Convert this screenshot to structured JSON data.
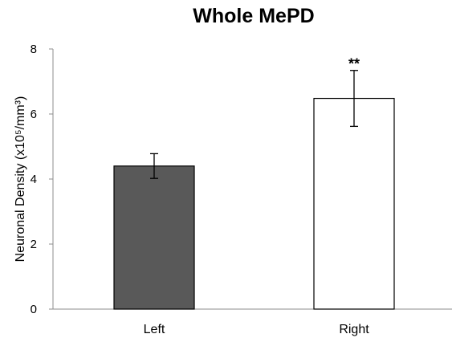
{
  "chart_data": {
    "type": "bar",
    "title": "Whole MePD",
    "ylabel": "Neuronal Density (x10⁵/mm³)",
    "xlabel": "",
    "categories": [
      "Left",
      "Right"
    ],
    "values": [
      4.4,
      6.48
    ],
    "error_bars": [
      0.38,
      0.86
    ],
    "annotations": [
      {
        "category": "Right",
        "text": "**"
      }
    ],
    "ylim": [
      0,
      8
    ],
    "yticks": [
      0,
      2,
      4,
      6,
      8
    ],
    "bar_colors": [
      "#595959",
      "#ffffff"
    ],
    "bar_edge_color": "#000000",
    "grid": false,
    "legend": false
  }
}
